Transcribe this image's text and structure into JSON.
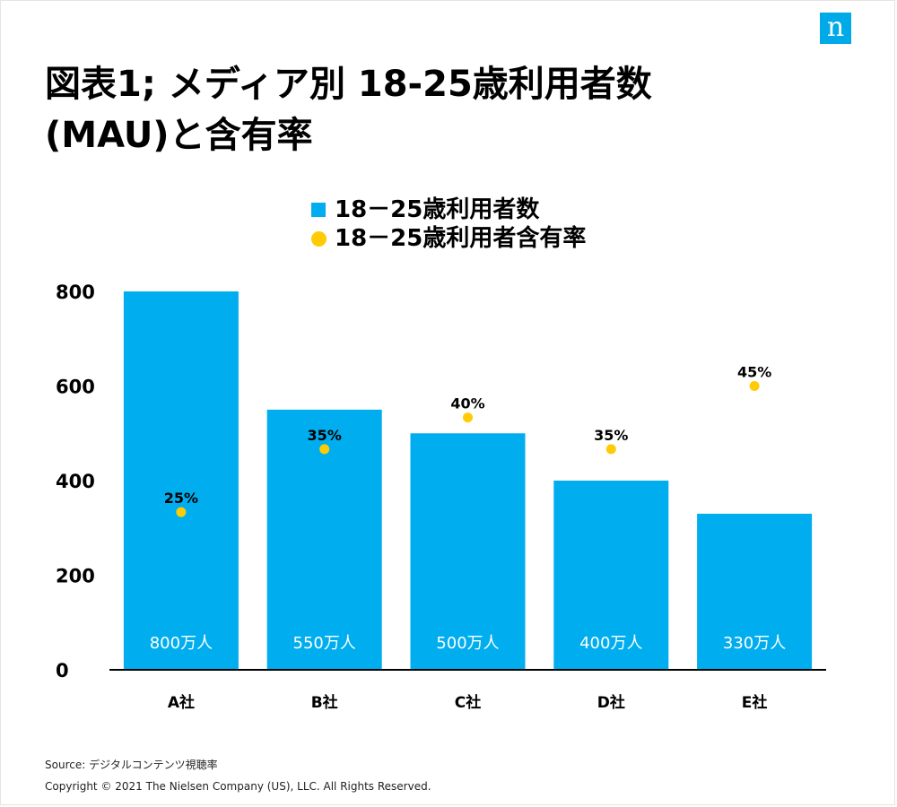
{
  "logo": {
    "letter": "n"
  },
  "title": {
    "line1": "図表1; メディア別 18-25歳利用者数",
    "line2": "(MAU)と含有率"
  },
  "legend": {
    "bar_series": "18－25歳利用者数",
    "dot_series": "18－25歳利用者含有率"
  },
  "colors": {
    "bar": "#00aeef",
    "dot": "#ffcb05",
    "logo": "#00a9e8"
  },
  "chart_data": {
    "type": "bar",
    "categories": [
      "A社",
      "B社",
      "C社",
      "D社",
      "E社"
    ],
    "series": [
      {
        "name": "18－25歳利用者数",
        "type": "bar",
        "values": [
          800,
          550,
          500,
          400,
          330
        ],
        "labels": [
          "800万人",
          "550万人",
          "500万人",
          "400万人",
          "330万人"
        ]
      },
      {
        "name": "18－25歳利用者含有率",
        "type": "scatter",
        "values": [
          25,
          35,
          40,
          35,
          45
        ],
        "labels": [
          "25%",
          "35%",
          "40%",
          "35%",
          "45%"
        ]
      }
    ],
    "yticks": [
      0,
      200,
      400,
      600,
      800
    ],
    "ylim": [
      0,
      800
    ],
    "secondary_ylim": [
      0,
      60
    ],
    "grid": false,
    "legend_position": "top-center"
  },
  "footer": {
    "source": "Source: デジタルコンテンツ視聴率",
    "copyright": "Copyright © 2021 The Nielsen Company (US), LLC. All Rights Reserved."
  }
}
